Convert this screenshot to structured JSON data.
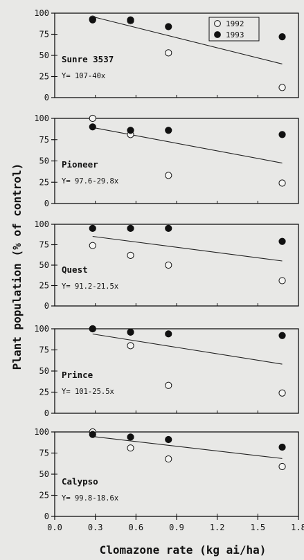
{
  "figure": {
    "xlabel": "Clomazone rate (kg ai/ha)",
    "ylabel": "Plant population (% of control)"
  },
  "legend": [
    {
      "name": "1992",
      "marker": "open-circle"
    },
    {
      "name": "1993",
      "marker": "filled-circle"
    }
  ],
  "chart_data": [
    {
      "type": "scatter",
      "cultivar": "Sunre 3537",
      "equation": "Y= 107-40x",
      "xlim": [
        0,
        1.8
      ],
      "ylim": [
        0,
        100
      ],
      "yticks": [
        0,
        25,
        50,
        75,
        100
      ],
      "xticks": [
        0.0,
        0.3,
        0.6,
        0.9,
        1.2,
        1.5,
        1.8
      ],
      "series": [
        {
          "name": "1992",
          "x": [
            0.28,
            0.56,
            0.84,
            1.68
          ],
          "y": [
            93,
            91,
            53,
            12
          ]
        },
        {
          "name": "1993",
          "x": [
            0.28,
            0.56,
            0.84,
            1.68
          ],
          "y": [
            92,
            92,
            84,
            72
          ]
        }
      ],
      "regression": {
        "intercept": 107,
        "slope": -40,
        "x_range": [
          0.28,
          1.68
        ]
      }
    },
    {
      "type": "scatter",
      "cultivar": "Pioneer",
      "equation": "Y= 97.6-29.8x",
      "xlim": [
        0,
        1.8
      ],
      "ylim": [
        0,
        100
      ],
      "yticks": [
        0,
        25,
        50,
        75,
        100
      ],
      "xticks": [
        0.0,
        0.3,
        0.6,
        0.9,
        1.2,
        1.5,
        1.8
      ],
      "series": [
        {
          "name": "1992",
          "x": [
            0.28,
            0.56,
            0.84,
            1.68
          ],
          "y": [
            100,
            81,
            33,
            24
          ]
        },
        {
          "name": "1993",
          "x": [
            0.28,
            0.56,
            0.84,
            1.68
          ],
          "y": [
            90,
            86,
            86,
            81
          ]
        }
      ],
      "regression": {
        "intercept": 97.6,
        "slope": -29.8,
        "x_range": [
          0.28,
          1.68
        ]
      }
    },
    {
      "type": "scatter",
      "cultivar": "Quest",
      "equation": "Y= 91.2-21.5x",
      "xlim": [
        0,
        1.8
      ],
      "ylim": [
        0,
        100
      ],
      "yticks": [
        0,
        25,
        50,
        75,
        100
      ],
      "xticks": [
        0.0,
        0.3,
        0.6,
        0.9,
        1.2,
        1.5,
        1.8
      ],
      "series": [
        {
          "name": "1992",
          "x": [
            0.28,
            0.56,
            0.84,
            1.68
          ],
          "y": [
            74,
            62,
            50,
            31
          ]
        },
        {
          "name": "1993",
          "x": [
            0.28,
            0.56,
            0.84,
            1.68
          ],
          "y": [
            95,
            95,
            95,
            79
          ]
        }
      ],
      "regression": {
        "intercept": 91.2,
        "slope": -21.5,
        "x_range": [
          0.28,
          1.68
        ]
      }
    },
    {
      "type": "scatter",
      "cultivar": "Prince",
      "equation": "Y= 101-25.5x",
      "xlim": [
        0,
        1.8
      ],
      "ylim": [
        0,
        100
      ],
      "yticks": [
        0,
        25,
        50,
        75,
        100
      ],
      "xticks": [
        0.0,
        0.3,
        0.6,
        0.9,
        1.2,
        1.5,
        1.8
      ],
      "series": [
        {
          "name": "1992",
          "x": [
            0.28,
            0.56,
            0.84,
            1.68
          ],
          "y": [
            100,
            80,
            33,
            24
          ]
        },
        {
          "name": "1993",
          "x": [
            0.28,
            0.56,
            0.84,
            1.68
          ],
          "y": [
            100,
            96,
            94,
            92
          ]
        }
      ],
      "regression": {
        "intercept": 101,
        "slope": -25.5,
        "x_range": [
          0.28,
          1.68
        ]
      }
    },
    {
      "type": "scatter",
      "cultivar": "Calypso",
      "equation": "Y= 99.8-18.6x",
      "xlim": [
        0,
        1.8
      ],
      "ylim": [
        0,
        100
      ],
      "yticks": [
        0,
        25,
        50,
        75,
        100
      ],
      "xticks": [
        0.0,
        0.3,
        0.6,
        0.9,
        1.2,
        1.5,
        1.8
      ],
      "series": [
        {
          "name": "1992",
          "x": [
            0.28,
            0.56,
            0.84,
            1.68
          ],
          "y": [
            100,
            81,
            68,
            59
          ]
        },
        {
          "name": "1993",
          "x": [
            0.28,
            0.56,
            0.84,
            1.68
          ],
          "y": [
            97,
            94,
            91,
            82
          ]
        }
      ],
      "regression": {
        "intercept": 99.8,
        "slope": -18.6,
        "x_range": [
          0.28,
          1.68
        ]
      }
    }
  ],
  "colors": {
    "ink": "#111111",
    "background": "#e8e8e6"
  }
}
